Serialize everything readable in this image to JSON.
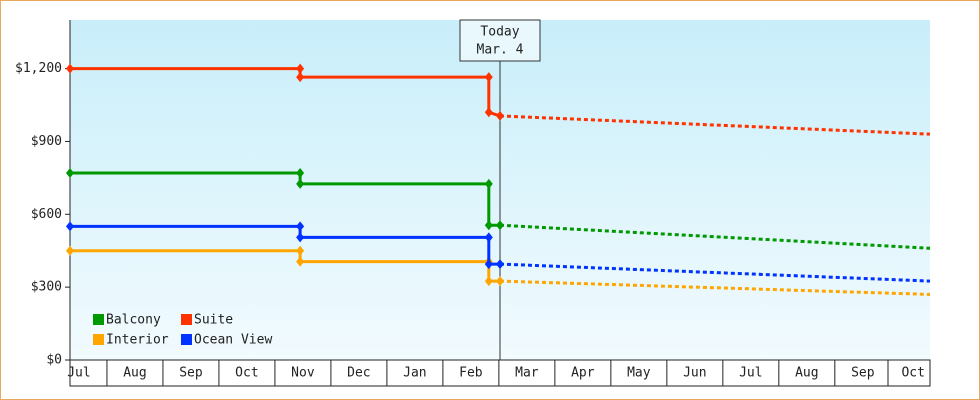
{
  "chart_data": {
    "type": "line",
    "x": [
      0.34,
      4.45,
      4.45,
      7.82,
      7.82,
      8.02,
      15.7
    ],
    "xlim": [
      0.34,
      15.7
    ],
    "xticks": [
      {
        "value": 0.5,
        "label": "Jul"
      },
      {
        "value": 1.5,
        "label": "Aug"
      },
      {
        "value": 2.5,
        "label": "Sep"
      },
      {
        "value": 3.5,
        "label": "Oct"
      },
      {
        "value": 4.5,
        "label": "Nov"
      },
      {
        "value": 5.5,
        "label": "Dec"
      },
      {
        "value": 6.5,
        "label": "Jan"
      },
      {
        "value": 7.5,
        "label": "Feb"
      },
      {
        "value": 8.5,
        "label": "Mar"
      },
      {
        "value": 9.5,
        "label": "Apr"
      },
      {
        "value": 10.5,
        "label": "May"
      },
      {
        "value": 11.5,
        "label": "Jun"
      },
      {
        "value": 12.5,
        "label": "Jul"
      },
      {
        "value": 13.5,
        "label": "Aug"
      },
      {
        "value": 14.5,
        "label": "Sep"
      },
      {
        "value": 15.4,
        "label": "Oct"
      }
    ],
    "ylim": [
      0,
      1400
    ],
    "yticks": [
      {
        "value": 0,
        "label": "$0"
      },
      {
        "value": 300,
        "label": "$300"
      },
      {
        "value": 600,
        "label": "$600"
      },
      {
        "value": 900,
        "label": "$900"
      },
      {
        "value": 1200,
        "label": "$1,200"
      }
    ],
    "today": {
      "x": 8.02,
      "label": "Today",
      "date": "Mar. 4"
    },
    "legend": "bottom-left",
    "series": [
      {
        "name": "Balcony",
        "color": "#009900",
        "values": [
          770,
          770,
          725,
          725,
          555,
          555,
          460
        ]
      },
      {
        "name": "Suite",
        "color": "#ff3300",
        "values": [
          1200,
          1200,
          1165,
          1165,
          1020,
          1005,
          930
        ]
      },
      {
        "name": "Interior",
        "color": "#ffa500",
        "values": [
          450,
          450,
          405,
          405,
          325,
          325,
          270
        ]
      },
      {
        "name": "Ocean View",
        "color": "#0033ff",
        "values": [
          550,
          550,
          505,
          505,
          395,
          395,
          325
        ]
      }
    ]
  }
}
